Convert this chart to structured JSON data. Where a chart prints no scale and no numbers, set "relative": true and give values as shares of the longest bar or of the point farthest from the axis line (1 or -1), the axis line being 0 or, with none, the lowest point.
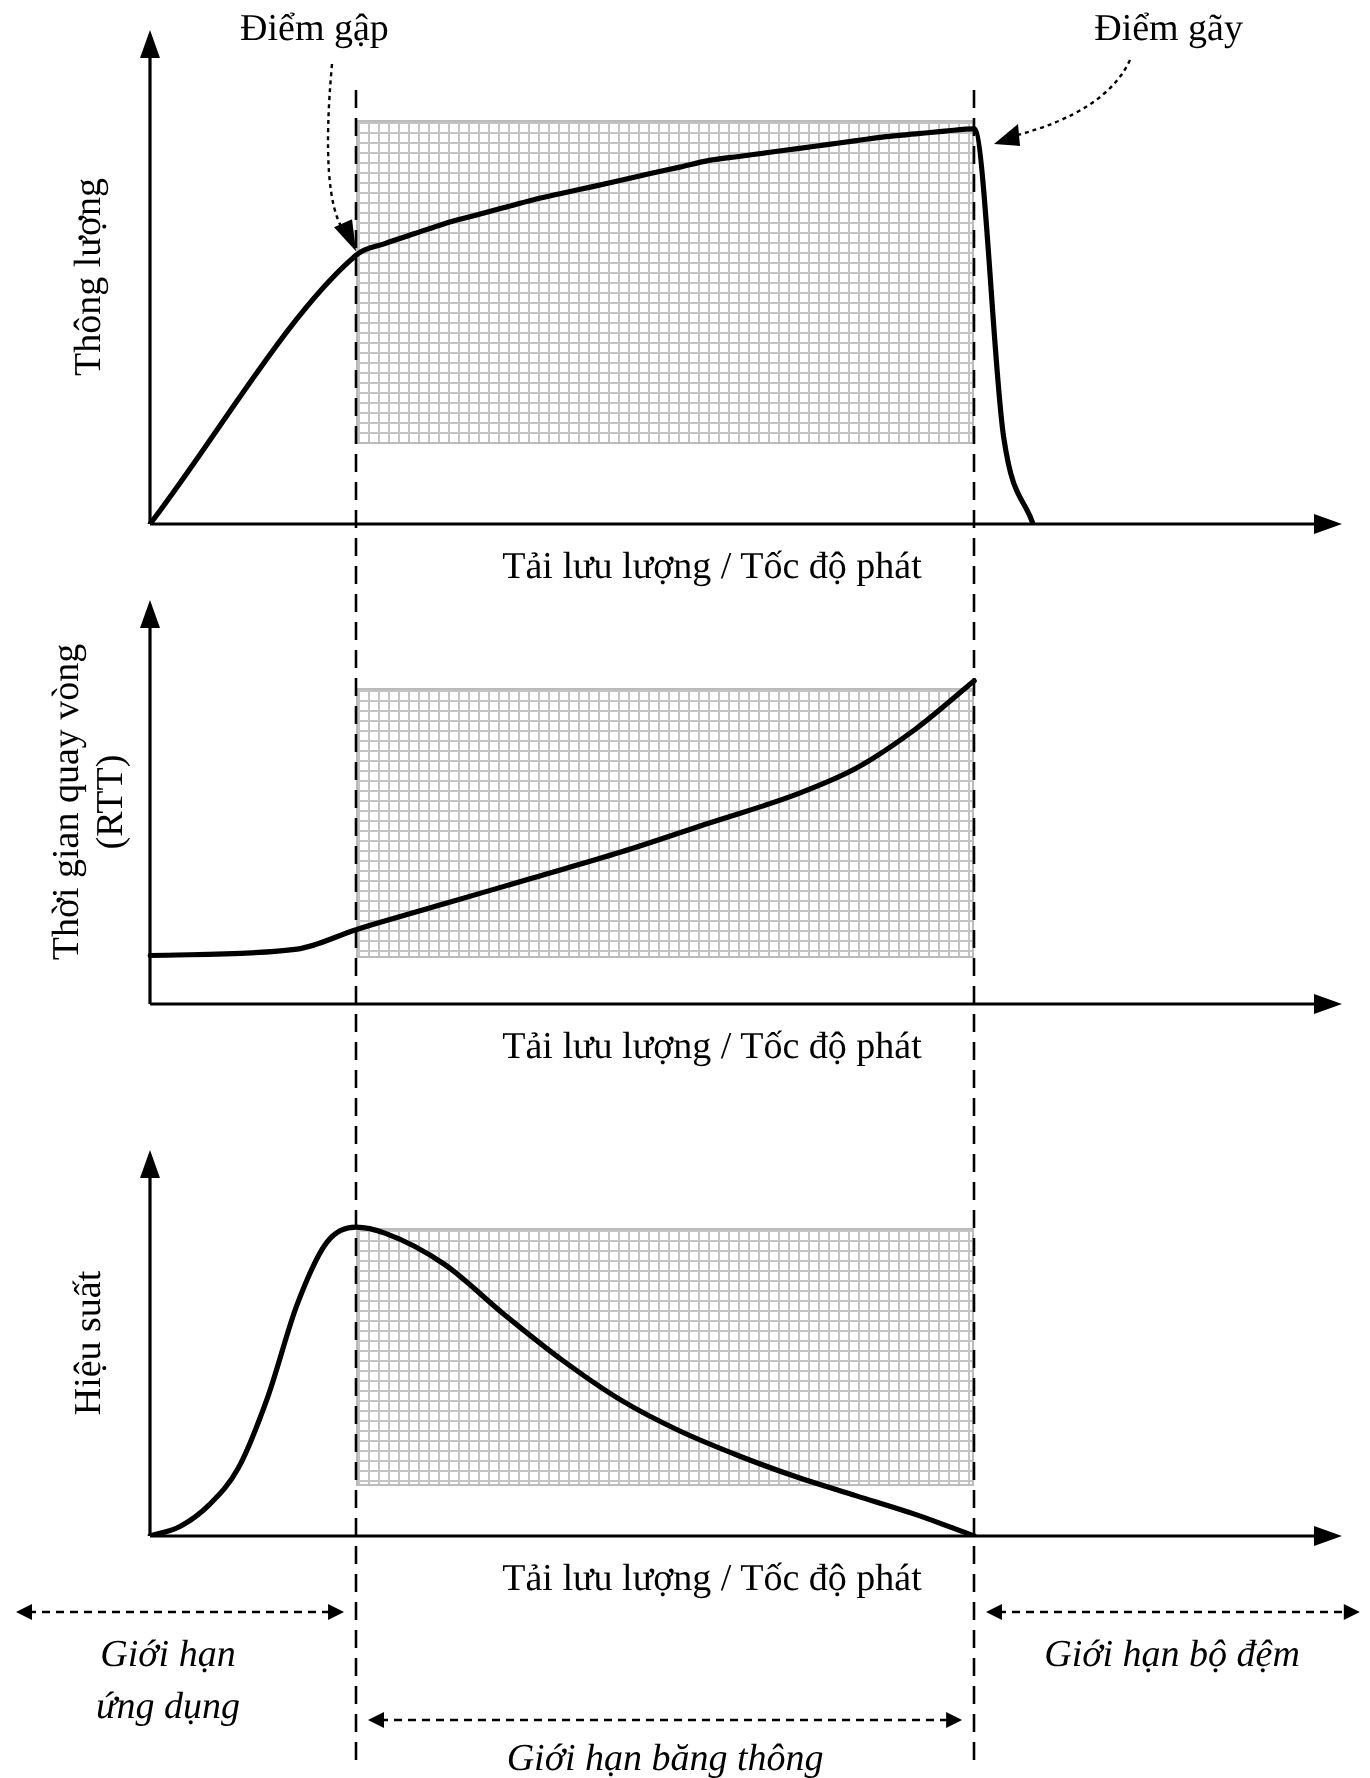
{
  "chart_data": [
    {
      "type": "line",
      "relative": true,
      "tick_labels": false,
      "line_style": "solid",
      "ylabel": "Thông lượng",
      "xlabel": "Tải lưu lượng / Tốc độ phát",
      "annotations": [
        "Điểm gập",
        "Điểm gãy"
      ],
      "categories": [
        null,
        null,
        null,
        null,
        null,
        null,
        null,
        null,
        null,
        null,
        null,
        null,
        null,
        null,
        null,
        null,
        null,
        null,
        null,
        null,
        null,
        null,
        null,
        null,
        null,
        null,
        null,
        null,
        null,
        null,
        null,
        null,
        null,
        null,
        null,
        null,
        null,
        null,
        null,
        null
      ],
      "series": [
        {
          "color": "#000000",
          "values": [
            0,
            null,
            null,
            null,
            null,
            null,
            null,
            0.68,
            0.71,
            0.735,
            0.76,
            0.78,
            0.8,
            0.82,
            0.837,
            0.853,
            0.87,
            0.887,
            0.903,
            0.92,
            0.93,
            0.94,
            0.95,
            0.96,
            0.97,
            0.98,
            0.987,
            0.994,
            1,
            0.22,
            0,
            null,
            null,
            null,
            null,
            null,
            null,
            null,
            null,
            null
          ]
        }
      ]
    },
    {
      "type": "line",
      "relative": true,
      "tick_labels": false,
      "line_style": "solid",
      "ylabel": "Thời gian quay vòng\n(RTT)",
      "xlabel": "Tải lưu lượng / Tốc độ phát",
      "categories": [
        null,
        null,
        null,
        null,
        null,
        null,
        null,
        null,
        null,
        null,
        null,
        null,
        null,
        null,
        null,
        null,
        null,
        null,
        null,
        null,
        null,
        null,
        null,
        null,
        null,
        null,
        null,
        null,
        null,
        null,
        null,
        null,
        null,
        null,
        null,
        null,
        null,
        null,
        null,
        null
      ],
      "series": [
        {
          "color": "#000000",
          "values": [
            0.15,
            null,
            null,
            null,
            null,
            0.17,
            null,
            0.23,
            null,
            null,
            0.31,
            null,
            null,
            0.39,
            null,
            null,
            0.47,
            null,
            null,
            0.56,
            null,
            null,
            0.65,
            null,
            0.73,
            null,
            0.85,
            null,
            1,
            null,
            null,
            null,
            null,
            null,
            null,
            null,
            null,
            null,
            null,
            null
          ]
        }
      ]
    },
    {
      "type": "line",
      "relative": true,
      "tick_labels": false,
      "line_style": "solid",
      "ylabel": "Hiệu suất",
      "xlabel": "Tải lưu lượng / Tốc độ phát",
      "annotations": [
        "Giới hạn\nứng dụng",
        "Giới hạn băng thông",
        "Giới hạn bộ đệm"
      ],
      "categories": [
        null,
        null,
        null,
        null,
        null,
        null,
        null,
        null,
        null,
        null,
        null,
        null,
        null,
        null,
        null,
        null,
        null,
        null,
        null,
        null,
        null,
        null,
        null,
        null,
        null,
        null,
        null,
        null,
        null,
        null,
        null,
        null,
        null,
        null,
        null,
        null,
        null,
        null,
        null,
        null
      ],
      "series": [
        {
          "color": "#000000",
          "values": [
            0,
            0.03,
            0.1,
            0.22,
            0.45,
            0.75,
            0.95,
            1,
            0.98,
            null,
            0.88,
            null,
            0.72,
            null,
            0.57,
            null,
            0.44,
            null,
            0.34,
            null,
            0.26,
            null,
            0.19,
            null,
            0.13,
            null,
            0.07,
            null,
            0,
            null,
            null,
            null,
            null,
            null,
            null,
            null,
            null,
            null,
            null,
            null
          ]
        }
      ]
    }
  ]
}
